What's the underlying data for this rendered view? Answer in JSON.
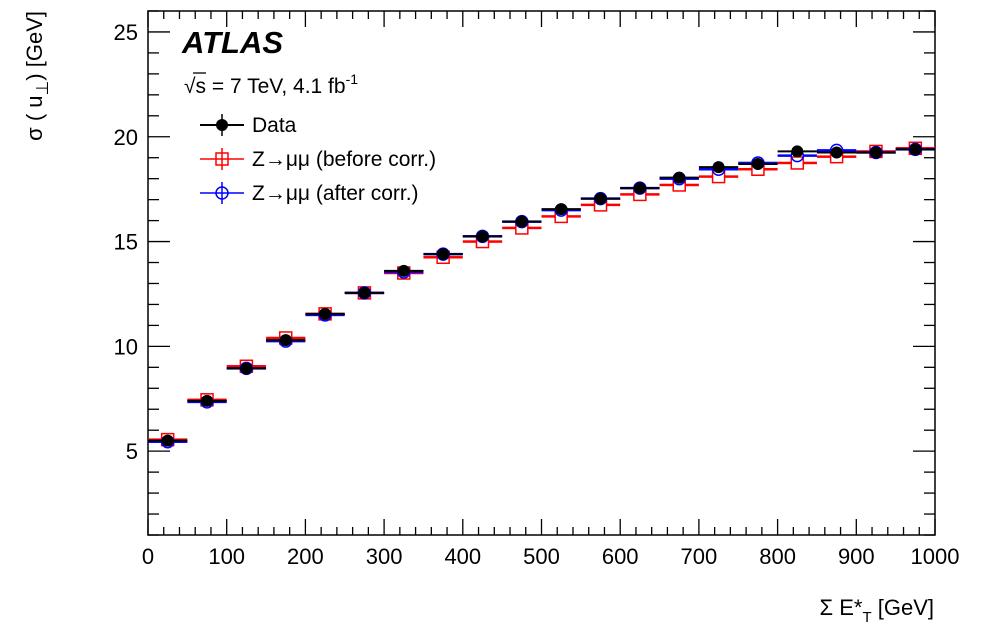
{
  "chart_data": {
    "type": "scatter",
    "experiment": "ATLAS",
    "energy_label_main": "√s = 7 TeV, 4.1 fb",
    "energy_label_sup": "-1",
    "xlabel_main": "Σ E*",
    "xlabel_sub": "T",
    "xlabel_unit": " [GeV]",
    "ylabel_pre": "σ ( u",
    "ylabel_sub": "⊥",
    "ylabel_post": ") [GeV]",
    "xlim": [
      0,
      1000
    ],
    "ylim": [
      1,
      26
    ],
    "x_ticks": [
      0,
      100,
      200,
      300,
      400,
      500,
      600,
      700,
      800,
      900,
      1000
    ],
    "y_ticks": [
      5,
      10,
      15,
      20,
      25
    ],
    "bin_edges": [
      0,
      50,
      100,
      150,
      200,
      250,
      300,
      350,
      400,
      450,
      500,
      550,
      600,
      650,
      700,
      750,
      800,
      850,
      900,
      950,
      1000
    ],
    "legend_position": "top-left",
    "series": [
      {
        "name": "Z→μμ (before corr.)",
        "color": "#ff0000",
        "marker": "open-square",
        "values": [
          5.55,
          7.45,
          9.05,
          10.4,
          11.55,
          12.55,
          13.5,
          14.25,
          15.0,
          15.65,
          16.2,
          16.75,
          17.25,
          17.7,
          18.1,
          18.45,
          18.75,
          19.05,
          19.3,
          19.45
        ]
      },
      {
        "name": "Z→μμ (after corr.)",
        "color": "#0000ff",
        "marker": "open-circle",
        "values": [
          5.45,
          7.35,
          8.95,
          10.25,
          11.5,
          12.55,
          13.55,
          14.4,
          15.25,
          15.95,
          16.5,
          17.05,
          17.55,
          18.0,
          18.45,
          18.75,
          19.1,
          19.35,
          19.25,
          19.4
        ]
      },
      {
        "name": "Data",
        "color": "#000000",
        "marker": "filled-circle",
        "values": [
          5.5,
          7.4,
          8.95,
          10.3,
          11.55,
          12.55,
          13.6,
          14.4,
          15.25,
          15.95,
          16.55,
          17.05,
          17.55,
          18.05,
          18.55,
          18.7,
          19.3,
          19.25,
          19.25,
          19.4
        ]
      }
    ],
    "legend_order": [
      2,
      0,
      1
    ]
  }
}
